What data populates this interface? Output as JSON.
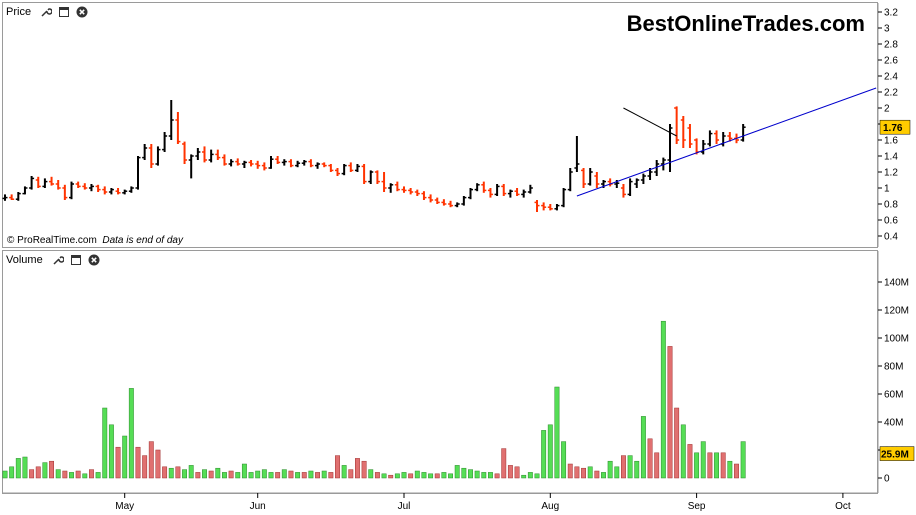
{
  "price_panel": {
    "title": "Price",
    "watermark": "BestOnlineTrades.com",
    "credit_source": "© ProRealTime.com",
    "credit_note": "Data is end of day",
    "current_value": "1.76"
  },
  "volume_panel": {
    "title": "Volume",
    "current_value": "25.9M"
  },
  "colors": {
    "up": "#000000",
    "down": "#ff3300",
    "vol_up": "#55dd55",
    "vol_down": "#e07070",
    "trendline": "#0000cc",
    "badge": "#ffcc00"
  },
  "chart_data": [
    {
      "type": "ohlc",
      "title": "Price",
      "y_ticks": [
        0.4,
        0.6,
        0.8,
        1,
        1.2,
        1.4,
        1.6,
        1.8,
        2,
        2.2,
        2.4,
        2.6,
        2.8,
        3,
        3.2
      ],
      "ylim": [
        0.3,
        3.25
      ],
      "x_ticks": [
        "May",
        "Jun",
        "Jul",
        "Aug",
        "Sep",
        "Oct"
      ],
      "bars": [
        {
          "o": 0.87,
          "h": 0.92,
          "l": 0.84,
          "c": 0.88
        },
        {
          "o": 0.88,
          "h": 0.92,
          "l": 0.85,
          "c": 0.86
        },
        {
          "o": 0.86,
          "h": 0.95,
          "l": 0.84,
          "c": 0.93
        },
        {
          "o": 0.93,
          "h": 1.02,
          "l": 0.92,
          "c": 1.0
        },
        {
          "o": 1.0,
          "h": 1.15,
          "l": 0.98,
          "c": 1.12
        },
        {
          "o": 1.1,
          "h": 1.14,
          "l": 1.0,
          "c": 1.02
        },
        {
          "o": 1.02,
          "h": 1.12,
          "l": 1.0,
          "c": 1.08
        },
        {
          "o": 1.08,
          "h": 1.14,
          "l": 1.03,
          "c": 1.05
        },
        {
          "o": 1.05,
          "h": 1.1,
          "l": 0.98,
          "c": 1.0
        },
        {
          "o": 1.0,
          "h": 1.04,
          "l": 0.85,
          "c": 0.88
        },
        {
          "o": 0.88,
          "h": 1.08,
          "l": 0.86,
          "c": 1.05
        },
        {
          "o": 1.05,
          "h": 1.08,
          "l": 1.0,
          "c": 1.02
        },
        {
          "o": 1.02,
          "h": 1.06,
          "l": 0.98,
          "c": 1.0
        },
        {
          "o": 1.0,
          "h": 1.05,
          "l": 0.96,
          "c": 1.02
        },
        {
          "o": 1.02,
          "h": 1.04,
          "l": 0.95,
          "c": 0.98
        },
        {
          "o": 0.98,
          "h": 1.02,
          "l": 0.92,
          "c": 0.95
        },
        {
          "o": 0.95,
          "h": 1.0,
          "l": 0.92,
          "c": 0.98
        },
        {
          "o": 0.96,
          "h": 1.0,
          "l": 0.92,
          "c": 0.94
        },
        {
          "o": 0.94,
          "h": 0.98,
          "l": 0.92,
          "c": 0.96
        },
        {
          "o": 0.96,
          "h": 1.02,
          "l": 0.94,
          "c": 1.0
        },
        {
          "o": 1.0,
          "h": 1.4,
          "l": 0.98,
          "c": 1.38
        },
        {
          "o": 1.38,
          "h": 1.55,
          "l": 1.35,
          "c": 1.5
        },
        {
          "o": 1.5,
          "h": 1.55,
          "l": 1.25,
          "c": 1.3
        },
        {
          "o": 1.3,
          "h": 1.52,
          "l": 1.28,
          "c": 1.48
        },
        {
          "o": 1.48,
          "h": 1.7,
          "l": 1.45,
          "c": 1.65
        },
        {
          "o": 1.65,
          "h": 2.1,
          "l": 1.6,
          "c": 1.85
        },
        {
          "o": 1.85,
          "h": 1.95,
          "l": 1.55,
          "c": 1.58
        },
        {
          "o": 1.55,
          "h": 1.58,
          "l": 1.3,
          "c": 1.35
        },
        {
          "o": 1.35,
          "h": 1.42,
          "l": 1.12,
          "c": 1.4
        },
        {
          "o": 1.4,
          "h": 1.5,
          "l": 1.35,
          "c": 1.45
        },
        {
          "o": 1.45,
          "h": 1.52,
          "l": 1.32,
          "c": 1.35
        },
        {
          "o": 1.35,
          "h": 1.48,
          "l": 1.32,
          "c": 1.42
        },
        {
          "o": 1.42,
          "h": 1.48,
          "l": 1.35,
          "c": 1.38
        },
        {
          "o": 1.38,
          "h": 1.42,
          "l": 1.28,
          "c": 1.3
        },
        {
          "o": 1.3,
          "h": 1.36,
          "l": 1.27,
          "c": 1.33
        },
        {
          "o": 1.33,
          "h": 1.37,
          "l": 1.28,
          "c": 1.3
        },
        {
          "o": 1.3,
          "h": 1.34,
          "l": 1.25,
          "c": 1.32
        },
        {
          "o": 1.32,
          "h": 1.35,
          "l": 1.27,
          "c": 1.3
        },
        {
          "o": 1.3,
          "h": 1.34,
          "l": 1.24,
          "c": 1.28
        },
        {
          "o": 1.28,
          "h": 1.32,
          "l": 1.22,
          "c": 1.25
        },
        {
          "o": 1.25,
          "h": 1.4,
          "l": 1.24,
          "c": 1.36
        },
        {
          "o": 1.36,
          "h": 1.4,
          "l": 1.3,
          "c": 1.32
        },
        {
          "o": 1.32,
          "h": 1.36,
          "l": 1.28,
          "c": 1.33
        },
        {
          "o": 1.33,
          "h": 1.36,
          "l": 1.26,
          "c": 1.28
        },
        {
          "o": 1.28,
          "h": 1.34,
          "l": 1.26,
          "c": 1.31
        },
        {
          "o": 1.31,
          "h": 1.35,
          "l": 1.28,
          "c": 1.33
        },
        {
          "o": 1.33,
          "h": 1.36,
          "l": 1.26,
          "c": 1.28
        },
        {
          "o": 1.28,
          "h": 1.32,
          "l": 1.24,
          "c": 1.3
        },
        {
          "o": 1.3,
          "h": 1.32,
          "l": 1.26,
          "c": 1.28
        },
        {
          "o": 1.28,
          "h": 1.3,
          "l": 1.2,
          "c": 1.22
        },
        {
          "o": 1.22,
          "h": 1.25,
          "l": 1.15,
          "c": 1.18
        },
        {
          "o": 1.18,
          "h": 1.3,
          "l": 1.16,
          "c": 1.28
        },
        {
          "o": 1.28,
          "h": 1.32,
          "l": 1.2,
          "c": 1.22
        },
        {
          "o": 1.22,
          "h": 1.3,
          "l": 1.2,
          "c": 1.27
        },
        {
          "o": 1.27,
          "h": 1.3,
          "l": 1.05,
          "c": 1.08
        },
        {
          "o": 1.08,
          "h": 1.22,
          "l": 1.05,
          "c": 1.2
        },
        {
          "o": 1.2,
          "h": 1.22,
          "l": 1.05,
          "c": 1.08
        },
        {
          "o": 1.08,
          "h": 1.2,
          "l": 0.95,
          "c": 1.0
        },
        {
          "o": 1.0,
          "h": 1.06,
          "l": 0.94,
          "c": 1.04
        },
        {
          "o": 1.04,
          "h": 1.08,
          "l": 0.96,
          "c": 0.98
        },
        {
          "o": 0.98,
          "h": 1.02,
          "l": 0.94,
          "c": 0.97
        },
        {
          "o": 0.97,
          "h": 1.0,
          "l": 0.92,
          "c": 0.95
        },
        {
          "o": 0.95,
          "h": 0.98,
          "l": 0.9,
          "c": 0.93
        },
        {
          "o": 0.93,
          "h": 0.96,
          "l": 0.85,
          "c": 0.88
        },
        {
          "o": 0.88,
          "h": 0.92,
          "l": 0.82,
          "c": 0.85
        },
        {
          "o": 0.85,
          "h": 0.88,
          "l": 0.8,
          "c": 0.82
        },
        {
          "o": 0.82,
          "h": 0.86,
          "l": 0.78,
          "c": 0.8
        },
        {
          "o": 0.8,
          "h": 0.84,
          "l": 0.76,
          "c": 0.78
        },
        {
          "o": 0.78,
          "h": 0.82,
          "l": 0.76,
          "c": 0.8
        },
        {
          "o": 0.8,
          "h": 0.9,
          "l": 0.78,
          "c": 0.88
        },
        {
          "o": 0.88,
          "h": 1.0,
          "l": 0.86,
          "c": 0.98
        },
        {
          "o": 0.98,
          "h": 1.06,
          "l": 0.96,
          "c": 1.04
        },
        {
          "o": 1.04,
          "h": 1.08,
          "l": 0.94,
          "c": 0.97
        },
        {
          "o": 0.97,
          "h": 1.0,
          "l": 0.88,
          "c": 0.92
        },
        {
          "o": 0.92,
          "h": 1.05,
          "l": 0.9,
          "c": 1.02
        },
        {
          "o": 1.02,
          "h": 1.05,
          "l": 0.9,
          "c": 0.93
        },
        {
          "o": 0.93,
          "h": 0.98,
          "l": 0.88,
          "c": 0.96
        },
        {
          "o": 0.96,
          "h": 1.0,
          "l": 0.9,
          "c": 0.92
        },
        {
          "o": 0.92,
          "h": 0.98,
          "l": 0.88,
          "c": 0.95
        },
        {
          "o": 0.95,
          "h": 1.04,
          "l": 0.93,
          "c": 1.0
        },
        {
          "o": 0.82,
          "h": 0.85,
          "l": 0.7,
          "c": 0.78
        },
        {
          "o": 0.78,
          "h": 0.82,
          "l": 0.72,
          "c": 0.76
        },
        {
          "o": 0.76,
          "h": 0.8,
          "l": 0.72,
          "c": 0.74
        },
        {
          "o": 0.74,
          "h": 0.8,
          "l": 0.72,
          "c": 0.78
        },
        {
          "o": 0.78,
          "h": 1.0,
          "l": 0.76,
          "c": 0.98
        },
        {
          "o": 0.98,
          "h": 1.25,
          "l": 0.96,
          "c": 1.2
        },
        {
          "o": 1.25,
          "h": 1.65,
          "l": 1.2,
          "c": 1.3
        },
        {
          "o": 1.22,
          "h": 1.25,
          "l": 1.0,
          "c": 1.05
        },
        {
          "o": 1.05,
          "h": 1.25,
          "l": 1.03,
          "c": 1.2
        },
        {
          "o": 1.15,
          "h": 1.2,
          "l": 1.0,
          "c": 1.05
        },
        {
          "o": 1.05,
          "h": 1.1,
          "l": 1.0,
          "c": 1.08
        },
        {
          "o": 1.08,
          "h": 1.12,
          "l": 1.02,
          "c": 1.05
        },
        {
          "o": 1.05,
          "h": 1.1,
          "l": 1.0,
          "c": 1.06
        },
        {
          "o": 1.0,
          "h": 1.05,
          "l": 0.88,
          "c": 0.92
        },
        {
          "o": 0.92,
          "h": 1.12,
          "l": 0.9,
          "c": 1.08
        },
        {
          "o": 1.05,
          "h": 1.12,
          "l": 1.0,
          "c": 1.1
        },
        {
          "o": 1.1,
          "h": 1.18,
          "l": 1.05,
          "c": 1.15
        },
        {
          "o": 1.15,
          "h": 1.25,
          "l": 1.1,
          "c": 1.2
        },
        {
          "o": 1.2,
          "h": 1.35,
          "l": 1.15,
          "c": 1.3
        },
        {
          "o": 1.3,
          "h": 1.38,
          "l": 1.22,
          "c": 1.35
        },
        {
          "o": 1.35,
          "h": 1.8,
          "l": 1.2,
          "c": 1.75
        },
        {
          "o": 2.0,
          "h": 2.02,
          "l": 1.55,
          "c": 1.6
        },
        {
          "o": 1.85,
          "h": 1.9,
          "l": 1.5,
          "c": 1.6
        },
        {
          "o": 1.75,
          "h": 1.8,
          "l": 1.5,
          "c": 1.55
        },
        {
          "o": 1.6,
          "h": 1.62,
          "l": 1.42,
          "c": 1.45
        },
        {
          "o": 1.45,
          "h": 1.6,
          "l": 1.42,
          "c": 1.55
        },
        {
          "o": 1.55,
          "h": 1.72,
          "l": 1.52,
          "c": 1.68
        },
        {
          "o": 1.68,
          "h": 1.72,
          "l": 1.55,
          "c": 1.6
        },
        {
          "o": 1.55,
          "h": 1.7,
          "l": 1.52,
          "c": 1.65
        },
        {
          "o": 1.65,
          "h": 1.7,
          "l": 1.58,
          "c": 1.62
        },
        {
          "o": 1.62,
          "h": 1.68,
          "l": 1.56,
          "c": 1.6
        },
        {
          "o": 1.6,
          "h": 1.8,
          "l": 1.58,
          "c": 1.76
        }
      ],
      "trendlines": [
        {
          "from": {
            "bar": 86,
            "value": 0.9
          },
          "to": {
            "bar": 131,
            "value": 2.25
          }
        },
        {
          "from": {
            "bar": 93,
            "value": 2.0
          },
          "to": {
            "bar": 101,
            "value": 1.65
          }
        }
      ]
    },
    {
      "type": "bar",
      "title": "Volume",
      "y_ticks": [
        "0",
        "20M",
        "40M",
        "60M",
        "80M",
        "100M",
        "120M",
        "140M"
      ],
      "ylim": [
        0,
        150
      ],
      "unit": "M",
      "values": [
        5,
        8,
        14,
        15,
        6,
        8,
        11,
        12,
        6,
        5,
        4,
        5,
        3,
        6,
        4,
        50,
        38,
        22,
        30,
        64,
        22,
        16,
        26,
        20,
        8,
        7,
        8,
        6,
        9,
        4,
        6,
        5,
        7,
        4,
        5,
        4,
        10,
        4,
        5,
        6,
        4,
        4,
        6,
        5,
        4,
        4,
        5,
        4,
        5,
        4,
        16,
        9,
        6,
        14,
        12,
        6,
        4,
        3,
        2,
        3,
        4,
        3,
        5,
        4,
        3,
        3,
        4,
        3,
        9,
        7,
        6,
        5,
        4,
        4,
        3,
        21,
        9,
        8,
        2,
        4,
        3,
        34,
        38,
        65,
        26,
        10,
        8,
        7,
        8,
        5,
        4,
        12,
        8,
        16,
        16,
        12,
        44,
        28,
        18,
        112,
        94,
        50,
        38,
        24,
        18,
        26,
        18,
        18,
        18,
        12,
        10,
        26
      ],
      "up": [
        1,
        1,
        1,
        1,
        0,
        0,
        1,
        0,
        1,
        0,
        1,
        0,
        1,
        0,
        1,
        1,
        1,
        0,
        1,
        1,
        0,
        0,
        0,
        0,
        0,
        1,
        0,
        1,
        1,
        0,
        1,
        0,
        1,
        1,
        0,
        1,
        1,
        1,
        1,
        1,
        1,
        0,
        1,
        0,
        1,
        0,
        1,
        0,
        1,
        0,
        0,
        1,
        0,
        0,
        0,
        1,
        0,
        1,
        0,
        1,
        1,
        0,
        1,
        1,
        1,
        0,
        1,
        1,
        1,
        1,
        1,
        1,
        1,
        1,
        0,
        0,
        0,
        0,
        1,
        1,
        1,
        1,
        1,
        1,
        1,
        0,
        0,
        0,
        1,
        0,
        1,
        1,
        1,
        0,
        1,
        1,
        1,
        0,
        0,
        1,
        0,
        0,
        1,
        0,
        1,
        1,
        0,
        1,
        0,
        1,
        0,
        1
      ],
      "last_value": "25.9M"
    }
  ]
}
